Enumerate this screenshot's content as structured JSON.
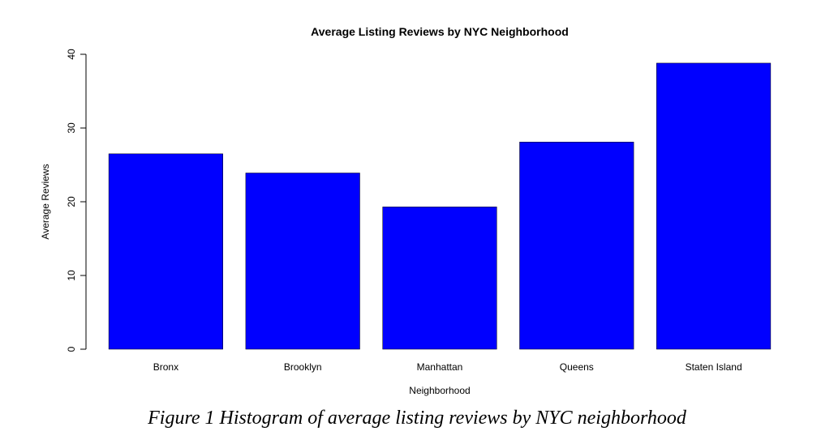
{
  "chart_data": {
    "type": "bar",
    "title": "Average Listing Reviews by NYC Neighborhood",
    "xlabel": "Neighborhood",
    "ylabel": "Average Reviews",
    "categories": [
      "Bronx",
      "Brooklyn",
      "Manhattan",
      "Queens",
      "Staten Island"
    ],
    "values": [
      26.5,
      23.9,
      19.3,
      28.1,
      38.8
    ],
    "ylim": [
      0,
      40
    ],
    "yticks": [
      0,
      10,
      20,
      30,
      40
    ],
    "bar_color": "#0000ff",
    "grid": false,
    "legend": "none"
  },
  "caption": "Figure 1 Histogram of average listing reviews by NYC neighborhood"
}
